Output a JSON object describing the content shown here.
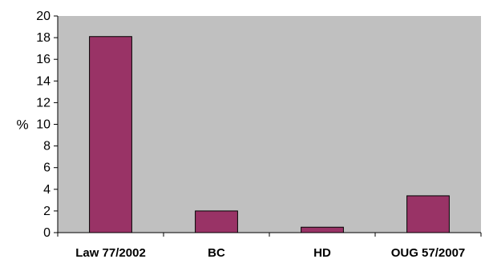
{
  "chart_data": {
    "type": "bar",
    "title": "",
    "xlabel": "",
    "ylabel": "%",
    "categories": [
      "Law 77/2002",
      "BC",
      "HD",
      "OUG 57/2007"
    ],
    "values": [
      18.1,
      2.0,
      0.5,
      3.4
    ],
    "ylim": [
      0,
      20
    ],
    "yticks": [
      "0",
      "2",
      "4",
      "6",
      "8",
      "10",
      "12",
      "14",
      "16",
      "18",
      "20"
    ],
    "grid": false,
    "legend": "none",
    "colors": {
      "plot_background": "#c0c0c0",
      "bar_fill": "#993366",
      "bar_stroke": "#000000",
      "axis": "#000000"
    }
  }
}
